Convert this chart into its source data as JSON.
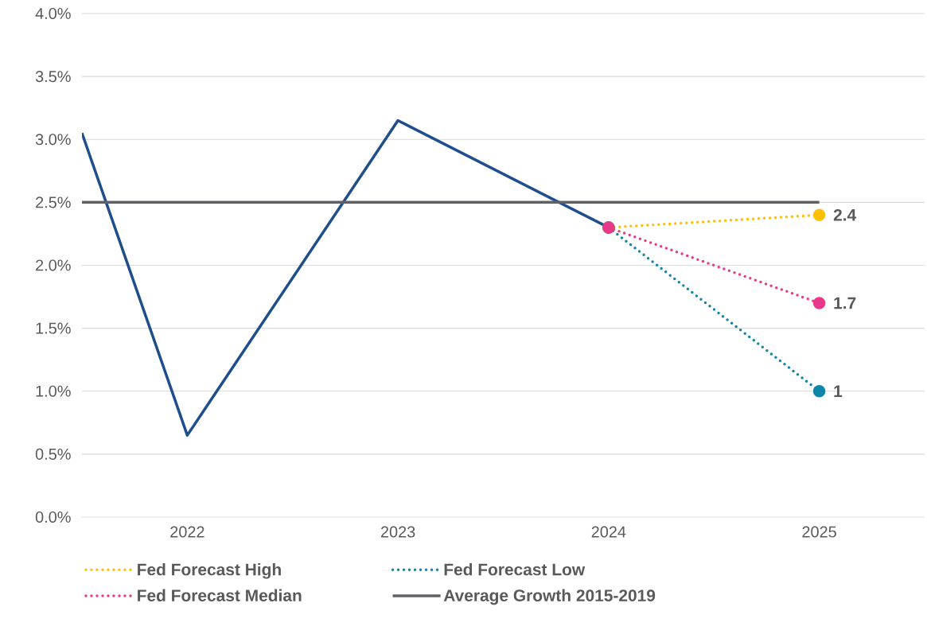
{
  "chart_data": {
    "type": "line",
    "series": [
      {
        "x": [
          2021.5,
          2022,
          2023,
          2024
        ],
        "values": [
          3.05,
          0.65,
          3.15,
          2.3
        ],
        "color": "#1f4e8c",
        "line_style": "solid",
        "marker": "none"
      },
      {
        "name": "Fed Forecast High",
        "x": [
          2024,
          2025
        ],
        "values": [
          2.3,
          2.4
        ],
        "color": "#ffc000",
        "line_style": "dotted",
        "marker": "circle",
        "value_labels": [
          null,
          "2.4"
        ]
      },
      {
        "name": "Fed Forecast Low",
        "x": [
          2024,
          2025
        ],
        "values": [
          2.3,
          1.0
        ],
        "color": "#0f86a8",
        "line_style": "dotted",
        "marker": "circle",
        "value_labels": [
          null,
          "1"
        ]
      },
      {
        "name": "Fed Forecast Median",
        "x": [
          2024,
          2025
        ],
        "values": [
          2.3,
          1.7
        ],
        "color": "#e8398a",
        "line_style": "dotted",
        "marker": "circle",
        "value_labels": [
          null,
          "1.7"
        ]
      },
      {
        "name": "Average Growth 2015-2019",
        "x": [
          2021.5,
          2025
        ],
        "values": [
          2.5,
          2.5
        ],
        "color": "#5f6064",
        "line_style": "solid",
        "marker": "none"
      }
    ],
    "xlim": [
      2021.5,
      2025.5
    ],
    "xticks": [
      2022,
      2023,
      2024,
      2025
    ],
    "ylim": [
      0,
      4
    ],
    "yticks": [
      {
        "value": 0,
        "label": "0.0%"
      },
      {
        "value": 0.5,
        "label": "0.5%"
      },
      {
        "value": 1,
        "label": "1.0%"
      },
      {
        "value": 1.5,
        "label": "1.5%"
      },
      {
        "value": 2,
        "label": "2.0%"
      },
      {
        "value": 2.5,
        "label": "2.5%"
      },
      {
        "value": 3,
        "label": "3.0%"
      },
      {
        "value": 3.5,
        "label": "3.5%"
      },
      {
        "value": 4,
        "label": "4.0%"
      }
    ],
    "grid": "y",
    "legend": "bottom"
  }
}
